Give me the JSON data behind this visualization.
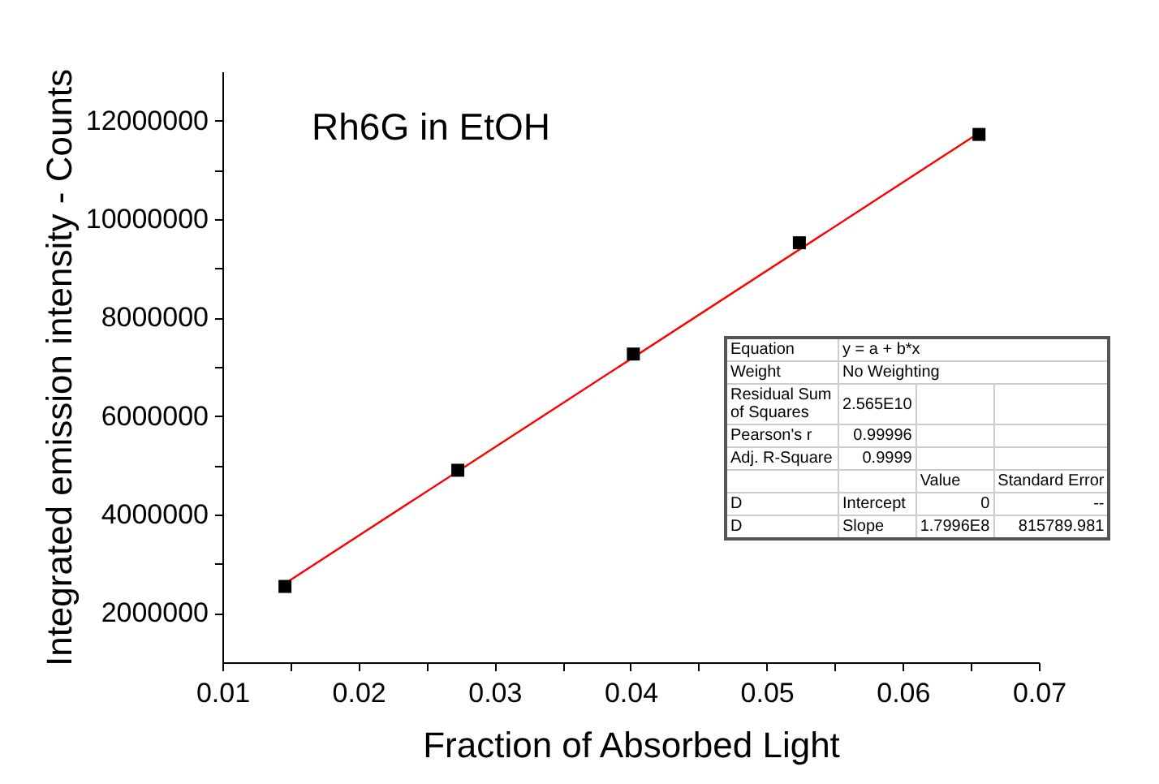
{
  "chart_data": {
    "type": "scatter",
    "xlabel": "Fraction of Absorbed Light",
    "ylabel": "Integrated emission intensity - Counts",
    "x": [
      0.0146,
      0.0273,
      0.0402,
      0.0524,
      0.0656
    ],
    "series": [
      {
        "type": "scatter",
        "color": "#000000",
        "marker": "square",
        "values": [
          2540000,
          4900000,
          7260000,
          9520000,
          11720000
        ]
      },
      {
        "type": "line",
        "color": "#ff0000",
        "x": [
          0.0146,
          0.0656
        ],
        "values": [
          2600000,
          11750000
        ]
      }
    ],
    "xlim": [
      0.01,
      0.07
    ],
    "xticks": [
      0.01,
      {
        "value": 0.015,
        "label": null
      },
      0.02,
      {
        "value": 0.025,
        "label": null
      },
      0.03,
      {
        "value": 0.035,
        "label": null
      },
      0.04,
      {
        "value": 0.045,
        "label": null
      },
      0.05,
      {
        "value": 0.055,
        "label": null
      },
      0.06,
      {
        "value": 0.065,
        "label": null
      },
      0.07
    ],
    "ylim": [
      1000000,
      13000000
    ],
    "yticks": [
      2000000,
      {
        "value": 3000000,
        "label": null
      },
      4000000,
      {
        "value": 5000000,
        "label": null
      },
      6000000,
      {
        "value": 7000000,
        "label": null
      },
      8000000,
      {
        "value": 9000000,
        "label": null
      },
      10000000,
      {
        "value": 11000000,
        "label": null
      },
      12000000
    ],
    "annotations": [
      "Rh6G in EtOH",
      "Equation",
      "y = a + b*x",
      "Weight",
      "No Weighting",
      "Residual Sum of Squares",
      "2.565E10",
      "Pearson's r",
      "0.99996",
      "Adj. R-Square",
      "0.9999",
      "Value",
      "Standard Error",
      "D",
      "Intercept",
      "0",
      "--",
      "D",
      "Slope",
      "1.7996E8",
      "815789.981"
    ]
  }
}
